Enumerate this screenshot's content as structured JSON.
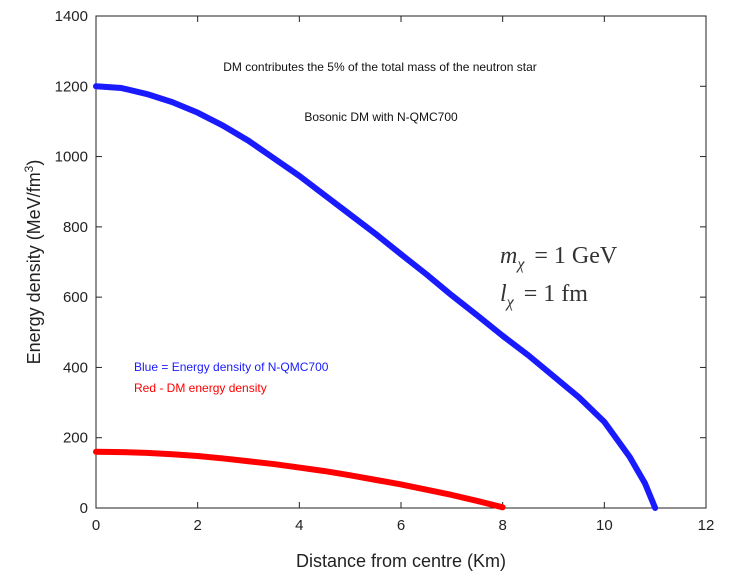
{
  "chart_data": {
    "type": "line",
    "xlabel": "Distance from centre (Km)",
    "ylabel_main": "Energy density (MeV/fm",
    "ylabel_sup": "3",
    "ylabel_end": ")",
    "xlim": [
      0,
      12
    ],
    "ylim": [
      0,
      1400
    ],
    "xticks": [
      "0",
      "2",
      "4",
      "6",
      "8",
      "10",
      "12"
    ],
    "yticks": [
      "0",
      "200",
      "400",
      "600",
      "800",
      "1000",
      "1200",
      "1400"
    ],
    "grid": false,
    "series": [
      {
        "color": "#1a1aff",
        "x": [
          0,
          0.5,
          1,
          1.5,
          2,
          2.5,
          3,
          3.5,
          4,
          4.5,
          5,
          5.5,
          6,
          6.5,
          7,
          7.5,
          8,
          8.5,
          9,
          9.5,
          10,
          10.5,
          10.8,
          11
        ],
        "y": [
          1200,
          1195,
          1178,
          1155,
          1125,
          1088,
          1045,
          995,
          945,
          890,
          835,
          780,
          722,
          665,
          605,
          548,
          490,
          435,
          375,
          315,
          245,
          145,
          70,
          0
        ]
      },
      {
        "color": "#ff0000",
        "x": [
          0,
          0.5,
          1,
          1.5,
          2,
          2.5,
          3,
          3.5,
          4,
          4.5,
          5,
          5.5,
          6,
          6.5,
          7,
          7.5,
          8
        ],
        "y": [
          160,
          159,
          157,
          153,
          148,
          141,
          133,
          125,
          115,
          105,
          93,
          80,
          67,
          52,
          37,
          20,
          2
        ]
      }
    ],
    "annotations": {
      "line1": "DM contributes the 5% of the total mass of the neutron star",
      "line2": "Bosonic DM with N-QMC700",
      "legend_blue": "Blue = Energy density of  N-QMC700",
      "legend_red": "Red - DM energy density",
      "param1_var": "m",
      "param1_sub": "χ",
      "param1_eq": "= 1 GeV",
      "param2_var": "l",
      "param2_sub": "χ",
      "param2_eq": "= 1 fm"
    }
  }
}
